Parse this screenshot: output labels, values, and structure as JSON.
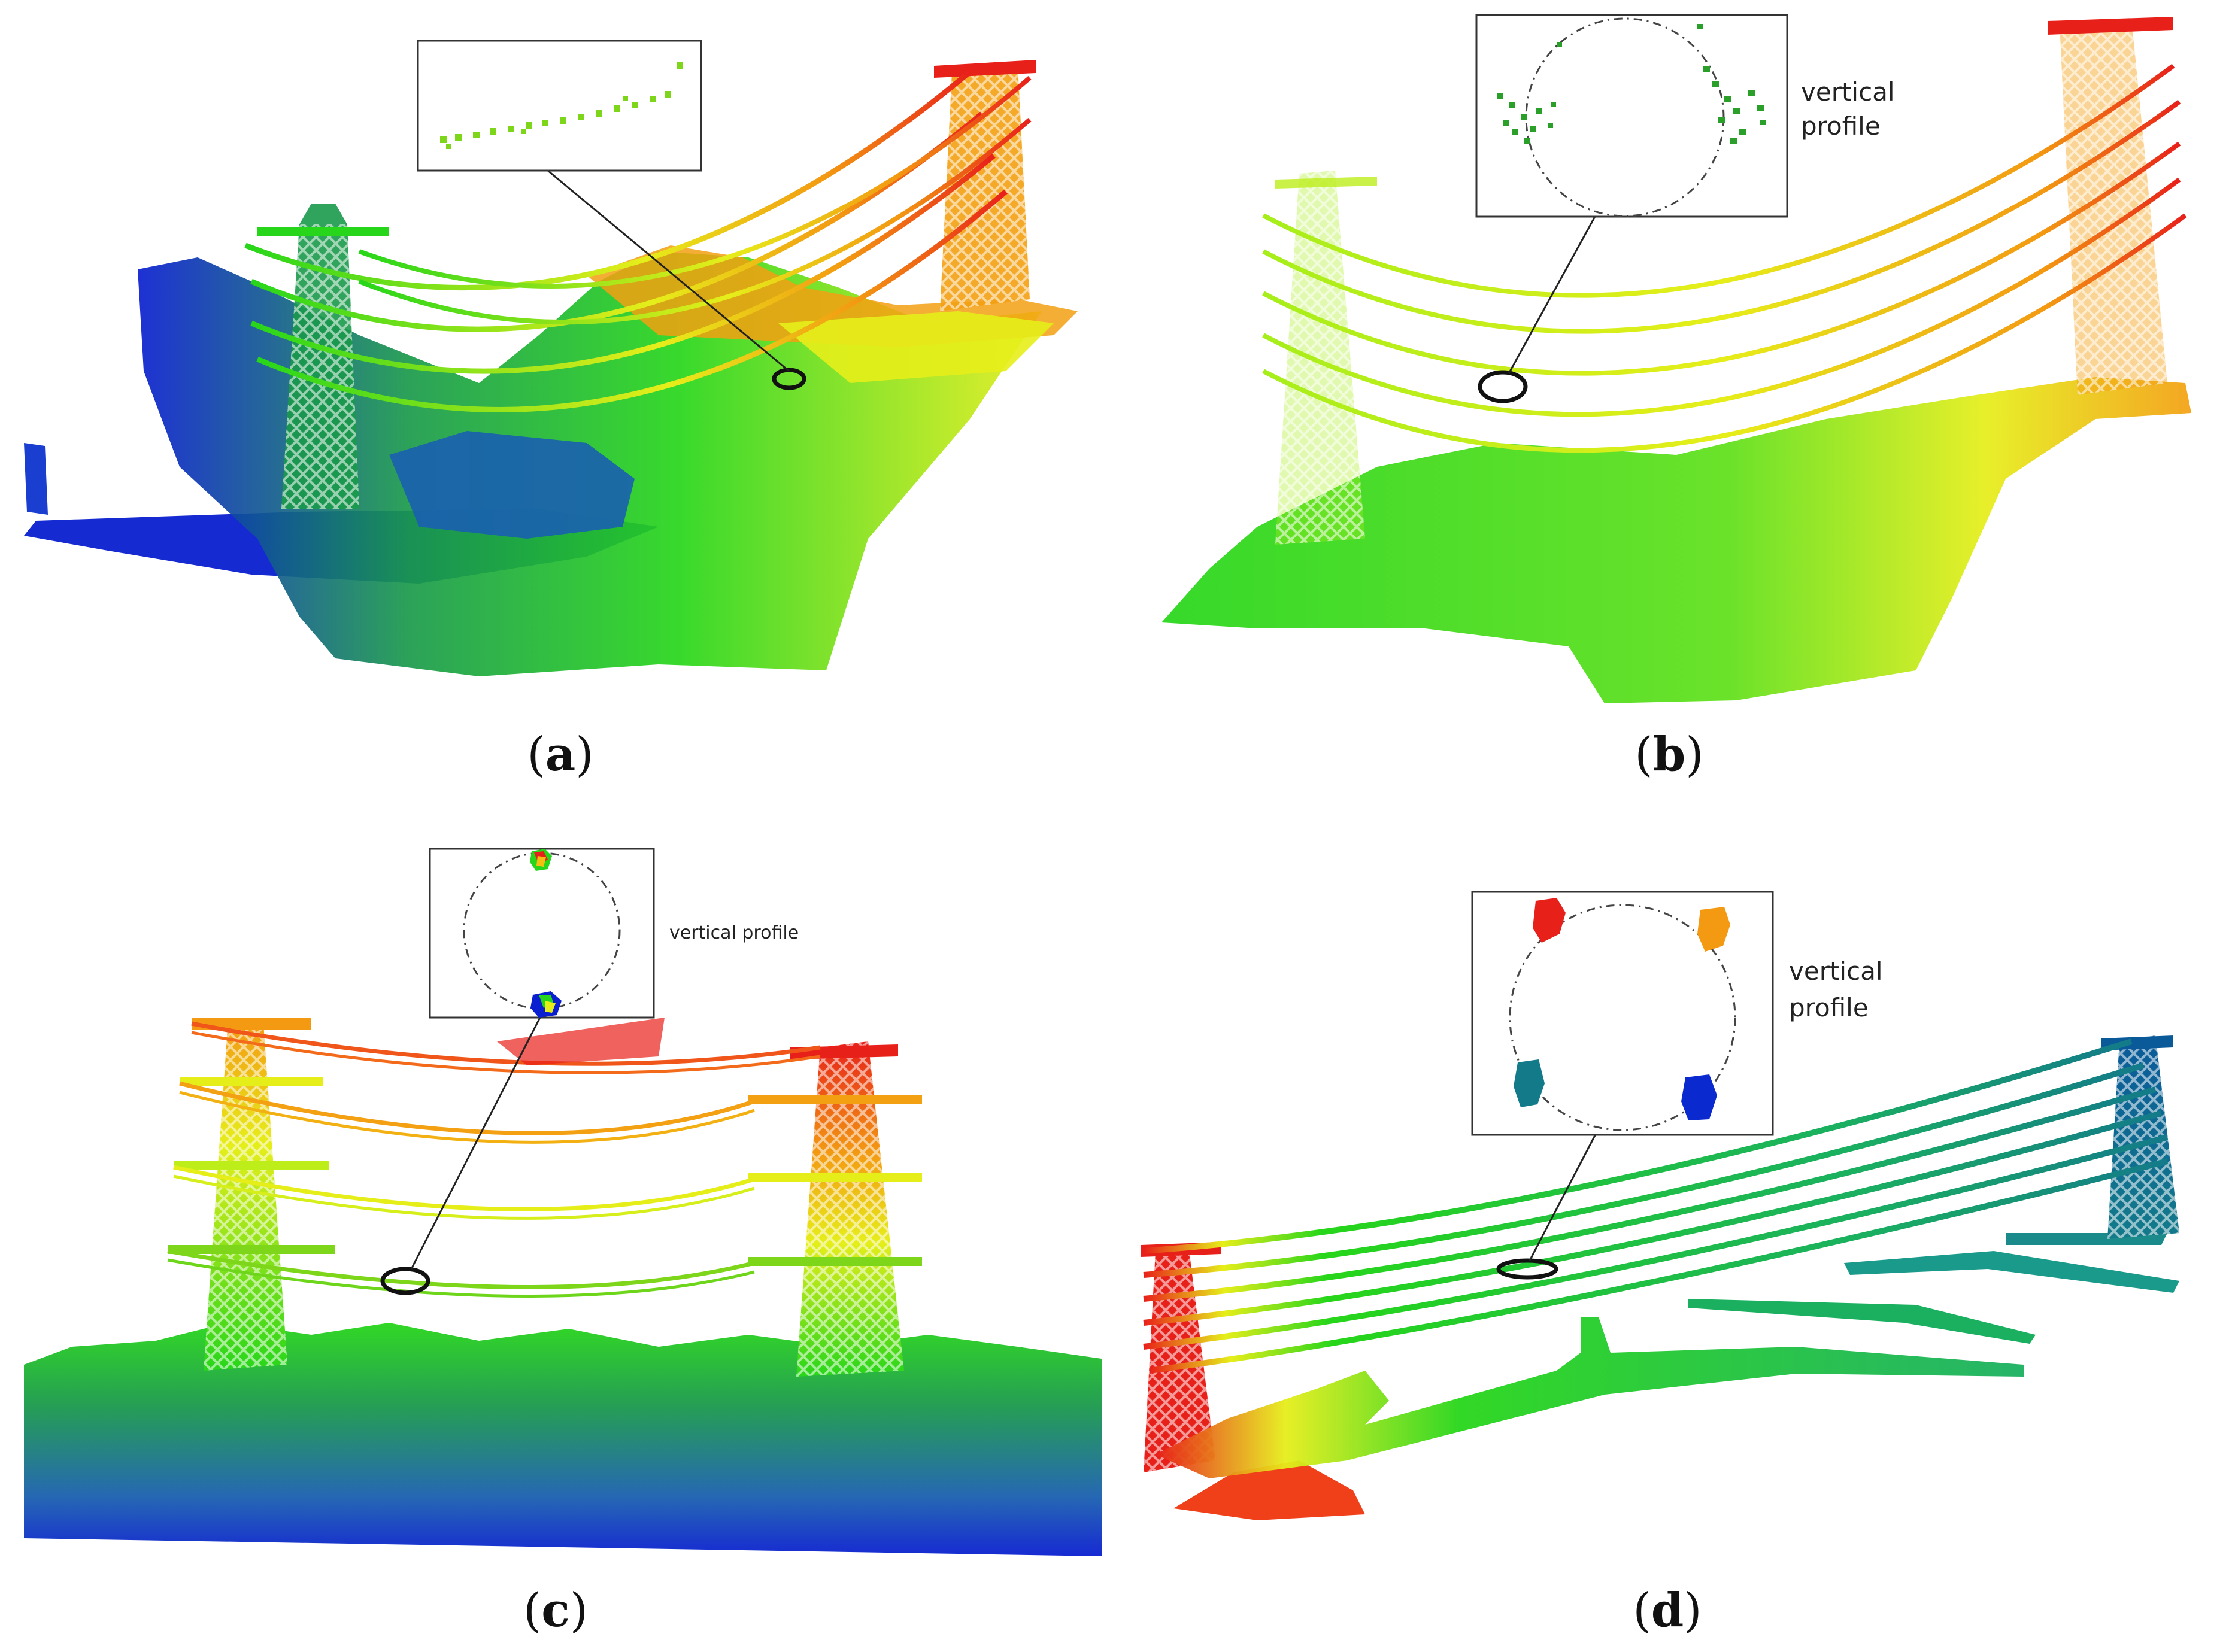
{
  "panels": [
    {
      "id": "a",
      "caption": {
        "open": "(",
        "letter": "a",
        "close": ")"
      },
      "inset_label": [
        "",
        ""
      ]
    },
    {
      "id": "b",
      "caption": {
        "open": "(",
        "letter": "b",
        "close": ")"
      },
      "inset_label": [
        "vertical",
        "profile"
      ]
    },
    {
      "id": "c",
      "caption": {
        "open": "(",
        "letter": "c",
        "close": ")"
      },
      "inset_label": [
        "vertical profile",
        ""
      ]
    },
    {
      "id": "d",
      "caption": {
        "open": "(",
        "letter": "d",
        "close": ")"
      },
      "inset_label": [
        "vertical",
        "profile"
      ]
    }
  ],
  "colors": {
    "low": "#0a1fd0",
    "mid_low": "#1a9a4a",
    "mid": "#27d61a",
    "mid_high": "#e6ee1a",
    "high": "#f39a12",
    "top": "#e8201a"
  }
}
